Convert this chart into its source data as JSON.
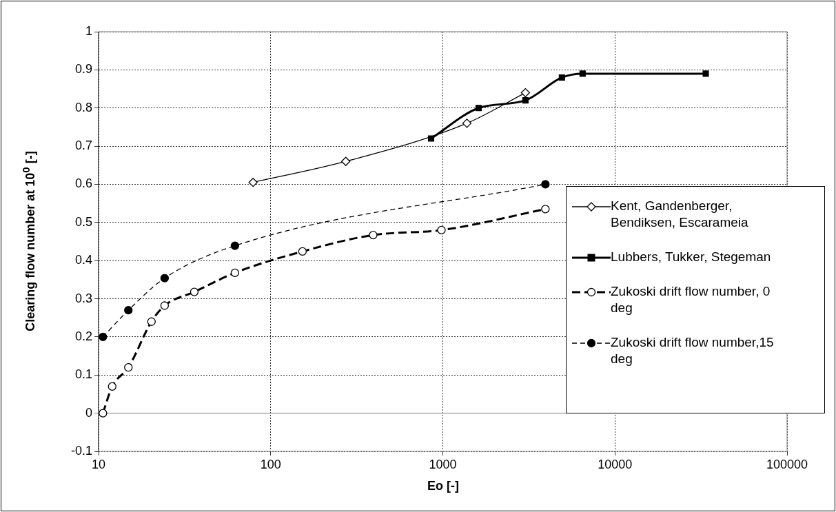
{
  "chart_data": {
    "type": "line",
    "xlabel": "Eo [-]",
    "ylabel": "Clearing flow number at 10$^{0}$ [-]",
    "log": "x",
    "xlim": [
      10,
      100000
    ],
    "xticks": [
      10,
      100,
      1000,
      10000,
      100000
    ],
    "ylim": [
      -0.1,
      1
    ],
    "yticks": [
      -0.1,
      0,
      0.1,
      0.2,
      0.3,
      0.4,
      0.5,
      0.6,
      0.7,
      0.8,
      0.9,
      1
    ],
    "grid": true,
    "legend": "right",
    "series": [
      {
        "name": "Kent, Gandenberger, Bendiksen, Escarameia",
        "color": "#000000",
        "marker": "diamond",
        "line_style": "solid",
        "x": [
          79,
          273,
          1380,
          3020
        ],
        "values": [
          0.605,
          0.66,
          0.76,
          0.84
        ]
      },
      {
        "name": "Lubbers, Tukker, Stegeman",
        "color": "#000000",
        "marker": "square",
        "line_style": "solid",
        "x": [
          855,
          1615,
          3020,
          4920,
          6490,
          33700
        ],
        "values": [
          0.72,
          0.8,
          0.82,
          0.88,
          0.89,
          0.89
        ]
      },
      {
        "name": "Zukoski drift flow number, 0 deg",
        "color": "#000000",
        "marker": "circle",
        "line_style": "dashed",
        "x": [
          10.6,
          12,
          14.9,
          20.3,
          24.2,
          36,
          62,
          153,
          394,
          982,
          3945
        ],
        "values": [
          0,
          0.07,
          0.12,
          0.24,
          0.282,
          0.318,
          0.368,
          0.424,
          0.467,
          0.48,
          0.535
        ]
      },
      {
        "name": "Zukoski drift flow number,15 deg",
        "color": "#000000",
        "marker": "circle",
        "line_style": "dashed",
        "x": [
          10.6,
          14.9,
          24.2,
          62,
          3945
        ],
        "values": [
          0.2,
          0.27,
          0.354,
          0.439,
          0.6
        ]
      }
    ]
  }
}
